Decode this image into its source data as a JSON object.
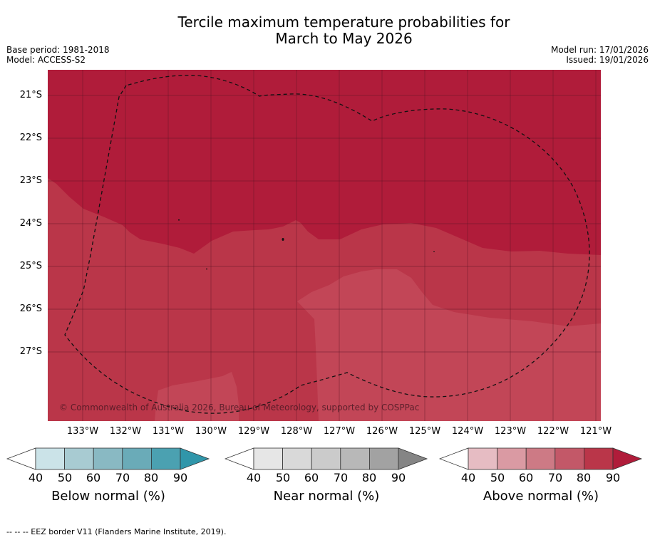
{
  "title_line1": "Tercile maximum temperature probabilities for",
  "title_line2": "March to May 2026",
  "base_period": "Base period: 1981-2018",
  "model": "Model: ACCESS-S2",
  "model_run": "Model run: 17/01/2026",
  "issued": "Issued: 19/01/2026",
  "copyright": "© Commonwealth of Australia 2026, Bureau of Meteorology, supported by COSPPac",
  "lat_labels": [
    "21°S",
    "22°S",
    "23°S",
    "24°S",
    "25°S",
    "26°S",
    "27°S"
  ],
  "lon_labels": [
    "133°W",
    "132°W",
    "131°W",
    "130°W",
    "129°W",
    "128°W",
    "127°W",
    "126°W",
    "125°W",
    "124°W",
    "123°W",
    "122°W",
    "121°W"
  ],
  "legends": [
    {
      "label": "Below normal (%)",
      "ticks": [
        "40",
        "50",
        "60",
        "70",
        "80",
        "90"
      ],
      "colors": [
        "#ffffff",
        "#cbe3e8",
        "#a8cbd2",
        "#89b9c3",
        "#6aabb8",
        "#4ba1b1",
        "#3096aa"
      ]
    },
    {
      "label": "Near normal (%)",
      "ticks": [
        "40",
        "50",
        "60",
        "70",
        "80",
        "90"
      ],
      "colors": [
        "#ffffff",
        "#e6e6e6",
        "#d9d9d9",
        "#cbcbcb",
        "#b8b8b8",
        "#a2a2a2",
        "#858585"
      ]
    },
    {
      "label": "Above normal (%)",
      "ticks": [
        "40",
        "50",
        "60",
        "70",
        "80",
        "90"
      ],
      "colors": [
        "#ffffff",
        "#e6bcc3",
        "#da9aa3",
        "#cd7a85",
        "#c35868",
        "#ba3649",
        "#b01c3a"
      ]
    }
  ],
  "footnote": "--  --  -- EEZ border V11 (Flanders Marine Institute, 2019).",
  "map_colors": {
    "band_90": "#b01c3a",
    "band_80": "#ba3649",
    "band_70": "#c24657"
  }
}
